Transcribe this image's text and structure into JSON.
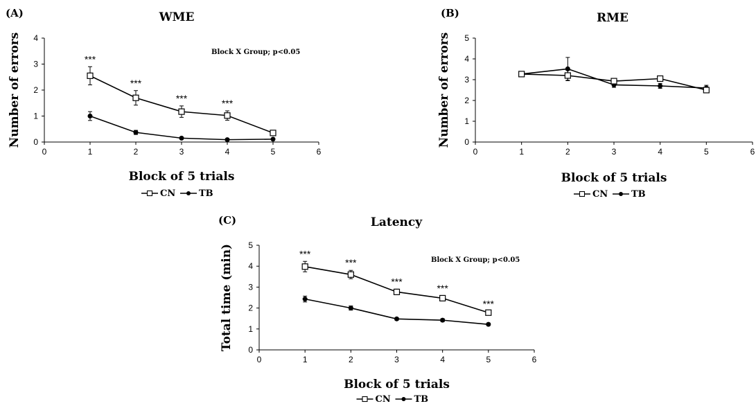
{
  "chart_data": [
    {
      "panel": "(A)",
      "type": "line",
      "title": "WME",
      "xlabel": "Block of 5 trials",
      "ylabel": "Number of errors",
      "xlim": [
        0,
        6
      ],
      "ylim": [
        0,
        4
      ],
      "xticks": [
        "0",
        "1",
        "2",
        "3",
        "4",
        "5",
        "6"
      ],
      "yticks": [
        "0",
        "1",
        "2",
        "3",
        "4"
      ],
      "annotation": "Block X Group; p<0.05",
      "significance": [
        "***",
        "***",
        "***",
        "***",
        ""
      ],
      "x": [
        1,
        2,
        3,
        4,
        5
      ],
      "series": [
        {
          "name": "CN",
          "marker": "open-square",
          "values": [
            2.55,
            1.7,
            1.17,
            1.02,
            0.35
          ],
          "errors": [
            0.35,
            0.28,
            0.22,
            0.18,
            0.07
          ]
        },
        {
          "name": "TB",
          "marker": "filled-circle",
          "values": [
            1.0,
            0.37,
            0.15,
            0.09,
            0.11
          ],
          "errors": [
            0.17,
            0.08,
            0.04,
            0.03,
            0.03
          ]
        }
      ]
    },
    {
      "panel": "(B)",
      "type": "line",
      "title": "RME",
      "xlabel": "Block of 5 trials",
      "ylabel": "Number of errors",
      "xlim": [
        0,
        6
      ],
      "ylim": [
        0,
        5
      ],
      "xticks": [
        "0",
        "1",
        "2",
        "3",
        "4",
        "5",
        "6"
      ],
      "yticks": [
        "0",
        "1",
        "2",
        "3",
        "4",
        "5"
      ],
      "annotation": "",
      "significance": [
        "",
        "",
        "",
        "",
        ""
      ],
      "x": [
        1,
        2,
        3,
        4,
        5
      ],
      "series": [
        {
          "name": "CN",
          "marker": "open-square",
          "values": [
            3.27,
            3.2,
            2.93,
            3.05,
            2.5
          ],
          "errors": [
            0.08,
            0.25,
            0.08,
            0.07,
            0.07
          ]
        },
        {
          "name": "TB",
          "marker": "filled-circle",
          "values": [
            3.27,
            3.52,
            2.75,
            2.7,
            2.6
          ],
          "errors": [
            0.1,
            0.55,
            0.12,
            0.12,
            0.13
          ]
        }
      ]
    },
    {
      "panel": "(C)",
      "type": "line",
      "title": "Latency",
      "xlabel": "Block of 5 trials",
      "ylabel": "Total time (min)",
      "xlim": [
        0,
        6
      ],
      "ylim": [
        0,
        5
      ],
      "xticks": [
        "0",
        "1",
        "2",
        "3",
        "4",
        "5",
        "6"
      ],
      "yticks": [
        "0",
        "1",
        "2",
        "3",
        "4",
        "5"
      ],
      "annotation": "Block X Group; p<0.05",
      "significance": [
        "***",
        "***",
        "***",
        "***",
        "***"
      ],
      "x": [
        1,
        2,
        3,
        4,
        5
      ],
      "series": [
        {
          "name": "CN",
          "marker": "open-square",
          "values": [
            3.98,
            3.6,
            2.77,
            2.47,
            1.78
          ],
          "errors": [
            0.25,
            0.2,
            0.13,
            0.12,
            0.06
          ]
        },
        {
          "name": "TB",
          "marker": "filled-circle",
          "values": [
            2.43,
            2.0,
            1.48,
            1.42,
            1.22
          ],
          "errors": [
            0.14,
            0.1,
            0.06,
            0.07,
            0.05
          ]
        }
      ]
    }
  ]
}
